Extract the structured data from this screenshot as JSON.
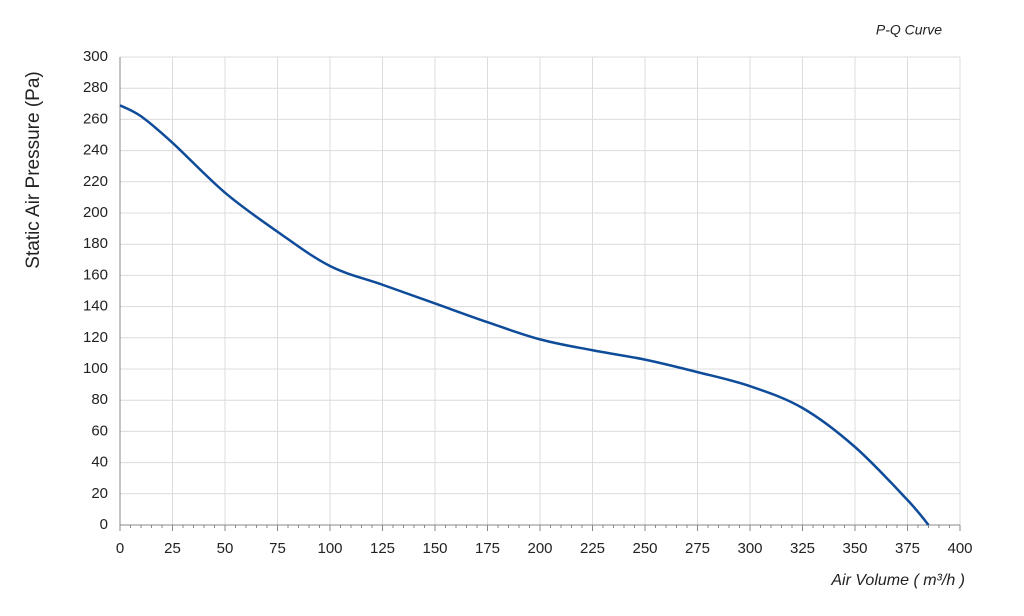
{
  "chart_data": {
    "type": "line",
    "title": "P-Q Curve",
    "x_label": "Air Volume ( m³/h )",
    "y_label": "Static Air Pressure  (Pa)",
    "x": [
      0,
      10,
      25,
      50,
      75,
      100,
      125,
      150,
      175,
      200,
      225,
      250,
      275,
      300,
      325,
      350,
      375,
      385
    ],
    "series": [
      {
        "name": "P-Q",
        "color": "#0e4c9a",
        "values": [
          269,
          262,
          245,
          213,
          188,
          166,
          154,
          142,
          130,
          119,
          112,
          106,
          98,
          89,
          75,
          50,
          16,
          0
        ]
      }
    ],
    "xlim": [
      0,
      400
    ],
    "xticks": [
      0,
      25,
      50,
      75,
      100,
      125,
      150,
      175,
      200,
      225,
      250,
      275,
      300,
      325,
      350,
      375,
      400
    ],
    "ylim": [
      0,
      300
    ],
    "yticks": [
      0,
      20,
      40,
      60,
      80,
      100,
      120,
      140,
      160,
      180,
      200,
      220,
      240,
      260,
      280,
      300
    ],
    "grid": true
  }
}
